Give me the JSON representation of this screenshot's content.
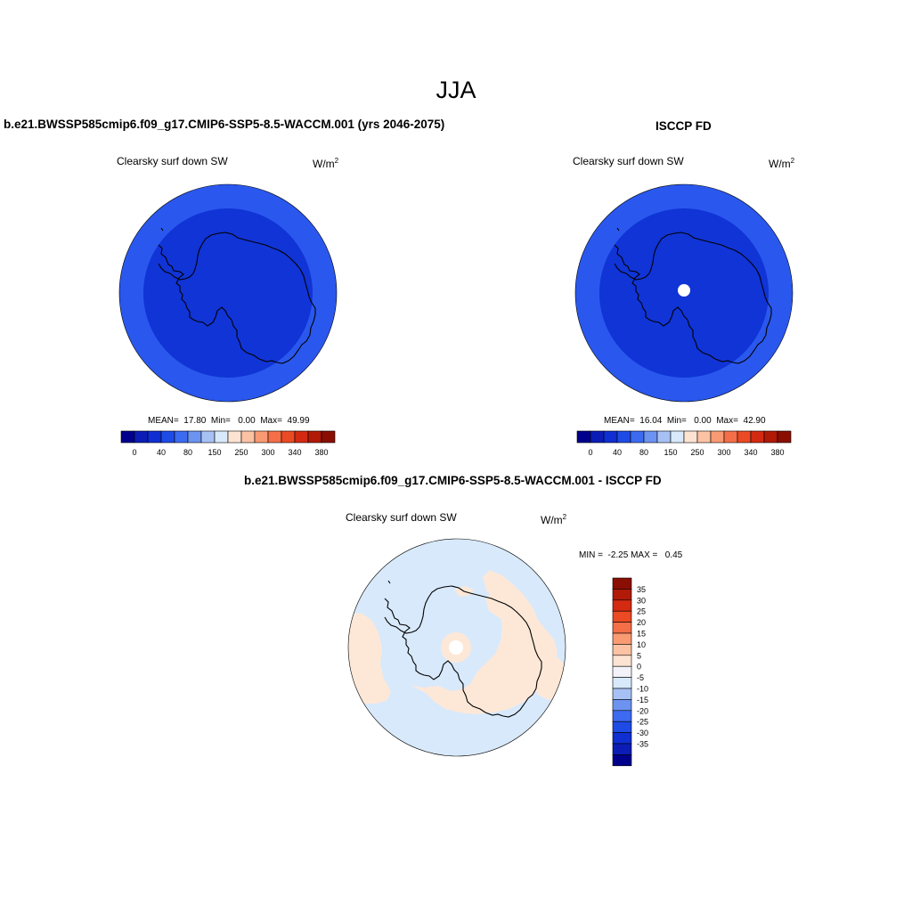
{
  "season": "JJA",
  "left_panel": {
    "title": "b.e21.BWSSP585cmip6.f09_g17.CMIP6-SSP5-8.5-WACCM.001 (yrs 2046-2075)",
    "variable": "Clearsky surf down SW",
    "units_base": "W/m",
    "units_exp": "2",
    "mean_label": "MEAN=",
    "mean": "17.80",
    "min_label": "Min=",
    "min": "0.00",
    "max_label": "Max=",
    "max": "49.99"
  },
  "right_panel": {
    "title": "ISCCP FD",
    "variable": "Clearsky surf down SW",
    "units_base": "W/m",
    "units_exp": "2",
    "mean_label": "MEAN=",
    "mean": "16.04",
    "min_label": "Min=",
    "min": "0.00",
    "max_label": "Max=",
    "max": "42.90"
  },
  "diff_panel": {
    "title": "b.e21.BWSSP585cmip6.f09_g17.CMIP6-SSP5-8.5-WACCM.001 - ISCCP FD",
    "variable": "Clearsky surf down SW",
    "units_base": "W/m",
    "units_exp": "2",
    "min_label": "MIN =",
    "min": "-2.25",
    "max_label": "MAX =",
    "max": "0.45"
  },
  "field_colorbar": {
    "colors": [
      "#00008c",
      "#0b1db4",
      "#0f2fd2",
      "#1e4be6",
      "#3c6af0",
      "#6c93f0",
      "#a7c1f5",
      "#d8e9fb",
      "#fde3d2",
      "#fcc2a4",
      "#f99a73",
      "#f46e48",
      "#ea4a24",
      "#d42a12",
      "#b01a07",
      "#8a0e02"
    ],
    "tick_labels": [
      "0",
      "40",
      "80",
      "150",
      "250",
      "300",
      "340",
      "380"
    ]
  },
  "diff_colorbar": {
    "colors": [
      "#8a0e02",
      "#b01a07",
      "#d42a12",
      "#ea4a24",
      "#f46e48",
      "#f99a73",
      "#fcc2a4",
      "#fde3d2",
      "#f2f2f8",
      "#d8e9fb",
      "#a7c1f5",
      "#6c93f0",
      "#3c6af0",
      "#1e4be6",
      "#0f2fd2",
      "#0b1db4",
      "#00008c"
    ],
    "tick_labels": [
      "35",
      "30",
      "25",
      "20",
      "15",
      "10",
      "5",
      "0",
      "-5",
      "-10",
      "-15",
      "-20",
      "-25",
      "-30",
      "-35"
    ]
  },
  "map_colors": {
    "outer_ring": "#2a58ee",
    "inner_field": "#1034d6",
    "diff_background": "#d8e9fb",
    "diff_positive": "#fde8d8",
    "coast": "#000000"
  }
}
